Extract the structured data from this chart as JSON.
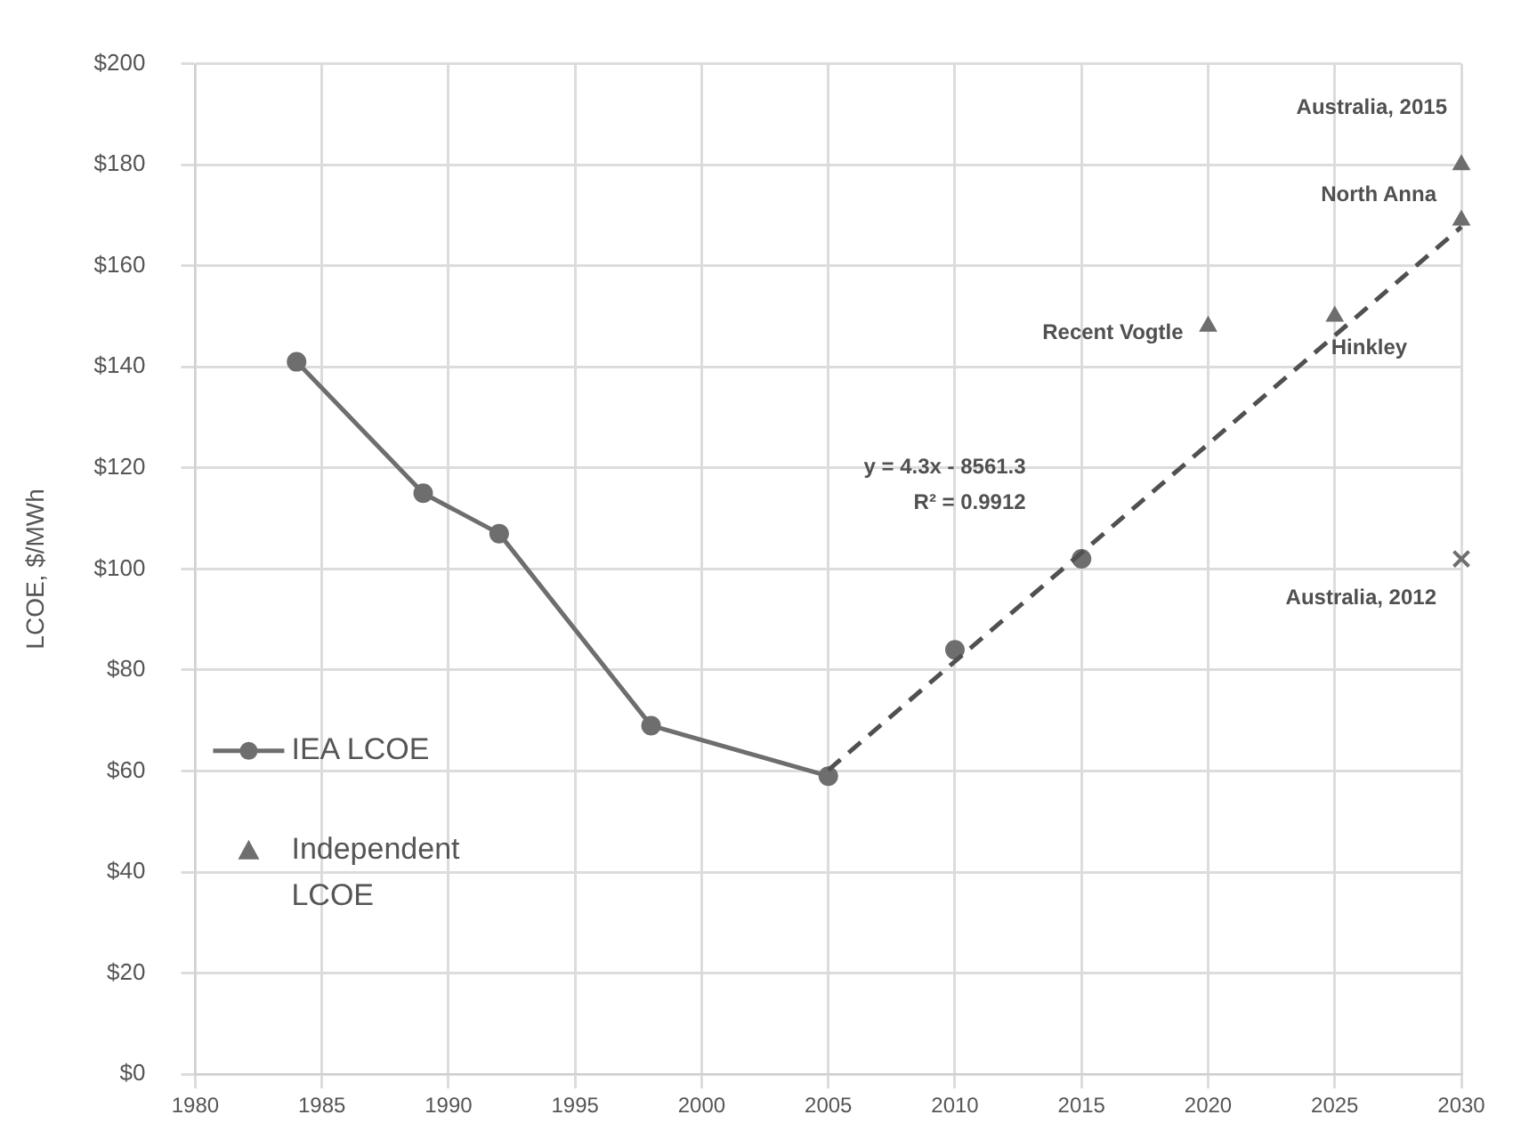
{
  "chart_data": {
    "type": "line",
    "ylabel": "LCOE, $/MWh",
    "xlim": [
      1980,
      2030
    ],
    "xticks": [
      1980,
      1985,
      1990,
      1995,
      2000,
      2005,
      2010,
      2015,
      2020,
      2025,
      2030
    ],
    "ylim": [
      0,
      200
    ],
    "yticks": [
      {
        "value": 0,
        "label": "$0"
      },
      {
        "value": 20,
        "label": "$20"
      },
      {
        "value": 40,
        "label": "$40"
      },
      {
        "value": 60,
        "label": "$60"
      },
      {
        "value": 80,
        "label": "$80"
      },
      {
        "value": 100,
        "label": "$100"
      },
      {
        "value": 120,
        "label": "$120"
      },
      {
        "value": 140,
        "label": "$140"
      },
      {
        "value": 160,
        "label": "$160"
      },
      {
        "value": 180,
        "label": "$180"
      },
      {
        "value": 200,
        "label": "$200"
      }
    ],
    "grid": true,
    "legend": "left",
    "series": [
      {
        "name": "IEA LCOE",
        "type": "line",
        "color": "#6e6e6e",
        "marker": "circle",
        "line_style": "solid",
        "x": [
          1984,
          1989,
          1992,
          1998,
          2005
        ],
        "values": [
          141,
          115,
          107,
          69,
          59
        ]
      },
      {
        "type": "scatter",
        "color": "#6e6e6e",
        "marker": "circle",
        "x": [
          2010,
          2015
        ],
        "values": [
          84,
          102
        ]
      },
      {
        "name": "Independent LCOE",
        "type": "scatter",
        "color": "#6e6e6e",
        "marker": "triangle",
        "x": [
          2020,
          2025,
          2030,
          2030
        ],
        "values": [
          148,
          150,
          169,
          180
        ]
      },
      {
        "type": "scatter",
        "color": "#6e6e6e",
        "marker": "cross",
        "x": [
          2030
        ],
        "values": [
          102
        ]
      },
      {
        "type": "line",
        "color": "#505050",
        "marker": "none",
        "line_style": "dashed",
        "x": [
          2005,
          2030
        ],
        "values": [
          60.2,
          167.7
        ]
      }
    ],
    "annotations": [
      {
        "text": "Australia, 2015",
        "x": 2030,
        "y": 180
      },
      {
        "text": "North Anna",
        "x": 2030,
        "y": 169
      },
      {
        "text": "Recent Vogtle",
        "x": 2020,
        "y": 148
      },
      {
        "text": "Hinkley",
        "x": 2025,
        "y": 150
      },
      {
        "text": "Australia, 2012",
        "x": 2030,
        "y": 102
      },
      "y = 4.3x - 8561.3",
      "R² = 0.9912"
    ]
  }
}
